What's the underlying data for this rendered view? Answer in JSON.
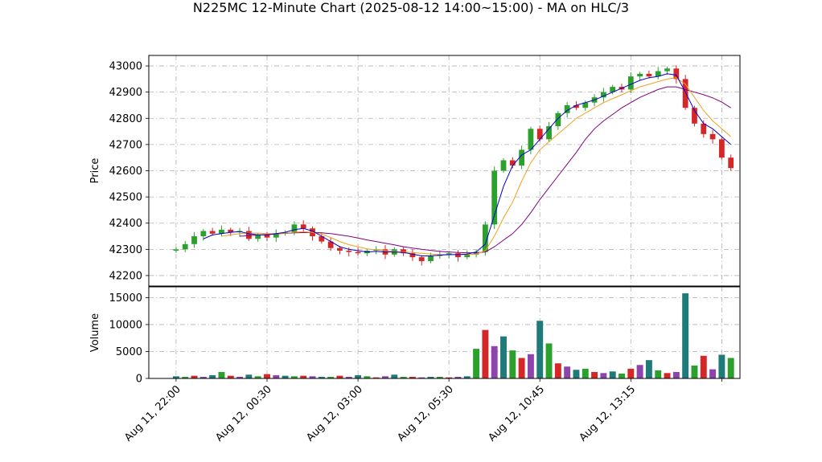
{
  "chart_data": {
    "type": "candlestick",
    "title": "N225MC 12-Minute Chart (2025-08-12 14:00~15:00) - MA on HLC/3",
    "price_panel": {
      "ylabel": "Price",
      "ylim": [
        42160,
        43040
      ],
      "yticks": [
        42200,
        42300,
        42400,
        42500,
        42600,
        42700,
        42800,
        42900,
        43000
      ],
      "grid": true
    },
    "volume_panel": {
      "ylabel": "Volume",
      "ylim": [
        0,
        17000
      ],
      "yticks": [
        0,
        5000,
        10000,
        15000
      ],
      "grid": true
    },
    "xticks": [
      "Aug 11, 22:00",
      "Aug 12, 00:30",
      "Aug 12, 03:00",
      "Aug 12, 05:30",
      "Aug 12, 10:45",
      "Aug 12, 13:15"
    ],
    "xlim": [
      -3,
      62
    ],
    "candle_colors": {
      "up": "#2ca02c",
      "down": "#d62728"
    },
    "volume_colors": [
      "#1f7a7a",
      "#2ca02c",
      "#d62728",
      "#8e44ad"
    ],
    "ma_colors": {
      "fast": "#0000cc",
      "mid": "#f0a020",
      "slow": "#800080"
    },
    "closes": [
      42300,
      42320,
      42350,
      42370,
      42360,
      42375,
      42365,
      42370,
      42340,
      42355,
      42345,
      42360,
      42365,
      42395,
      42380,
      42350,
      42330,
      42305,
      42295,
      42290,
      42285,
      42295,
      42300,
      42280,
      42300,
      42285,
      42270,
      42255,
      42275,
      42280,
      42285,
      42270,
      42280,
      42290,
      42395,
      42600,
      42640,
      42620,
      42680,
      42760,
      42720,
      42770,
      42820,
      42850,
      42840,
      42860,
      42880,
      42900,
      42920,
      42910,
      42960,
      42970,
      42960,
      42980,
      42990,
      42950,
      42840,
      42780,
      42740,
      42720,
      42650,
      42610
    ],
    "ma_fast": [
      null,
      null,
      null,
      42340,
      42355,
      42360,
      42365,
      42368,
      42360,
      42355,
      42355,
      42360,
      42365,
      42375,
      42380,
      42370,
      42350,
      42330,
      42310,
      42300,
      42295,
      42290,
      42292,
      42290,
      42290,
      42288,
      42282,
      42275,
      42275,
      42278,
      42280,
      42280,
      42282,
      42290,
      42320,
      42430,
      42540,
      42620,
      42660,
      42680,
      42720,
      42760,
      42800,
      42830,
      42850,
      42860,
      42870,
      42885,
      42900,
      42915,
      42930,
      42945,
      42955,
      42960,
      42970,
      42965,
      42900,
      42830,
      42780,
      42760,
      42730,
      42700
    ],
    "ma_mid": [
      null,
      null,
      null,
      null,
      null,
      42350,
      42355,
      42360,
      42362,
      42362,
      42360,
      42360,
      42362,
      42365,
      42368,
      42365,
      42358,
      42345,
      42330,
      42318,
      42310,
      42302,
      42298,
      42295,
      42292,
      42290,
      42288,
      42285,
      42282,
      42280,
      42280,
      42280,
      42280,
      42282,
      42295,
      42350,
      42420,
      42480,
      42560,
      42630,
      42680,
      42710,
      42740,
      42770,
      42800,
      42820,
      42840,
      42860,
      42875,
      42890,
      42905,
      42920,
      42930,
      42940,
      42950,
      42955,
      42930,
      42880,
      42830,
      42790,
      42760,
      42730
    ],
    "ma_slow": [
      null,
      null,
      null,
      null,
      null,
      null,
      null,
      42350,
      42352,
      42355,
      42357,
      42359,
      42361,
      42363,
      42364,
      42365,
      42363,
      42360,
      42355,
      42350,
      42343,
      42336,
      42330,
      42323,
      42317,
      42310,
      42305,
      42300,
      42296,
      42292,
      42290,
      42288,
      42287,
      42287,
      42290,
      42310,
      42335,
      42360,
      42395,
      42440,
      42490,
      42535,
      42580,
      42625,
      42670,
      42720,
      42760,
      42790,
      42815,
      42840,
      42860,
      42880,
      42895,
      42910,
      42920,
      42920,
      42910,
      42900,
      42890,
      42878,
      42862,
      42840
    ],
    "volumes": [
      400,
      300,
      500,
      300,
      600,
      1200,
      500,
      300,
      700,
      400,
      800,
      600,
      500,
      400,
      500,
      400,
      300,
      300,
      500,
      300,
      600,
      400,
      200,
      400,
      700,
      300,
      300,
      200,
      300,
      300,
      200,
      300,
      400,
      5500,
      9000,
      6000,
      7800,
      5200,
      3800,
      4500,
      10700,
      6500,
      2800,
      2200,
      1600,
      1800,
      1200,
      1000,
      1300,
      900,
      1800,
      2500,
      3400,
      1500,
      1000,
      1200,
      15800,
      2400,
      4200,
      1700,
      4400,
      3800
    ]
  }
}
